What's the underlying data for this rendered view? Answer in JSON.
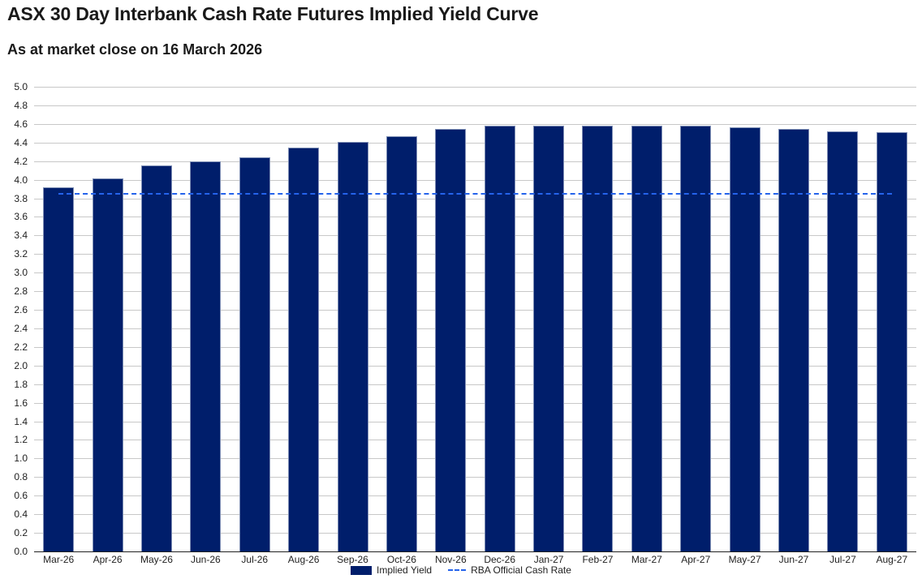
{
  "header": {
    "title": "ASX 30 Day Interbank Cash Rate Futures Implied Yield Curve",
    "subtitle": "As at market close on 16 March 2026"
  },
  "legend": {
    "bar_label": "Implied Yield",
    "line_label": "RBA Official Cash Rate"
  },
  "colors": {
    "bar": "#001e6b",
    "line": "#2563eb",
    "grid": "#c8c8c8"
  },
  "chart_data": {
    "type": "bar",
    "title": "ASX 30 Day Interbank Cash Rate Futures Implied Yield Curve",
    "subtitle": "As at market close on 16 March 2026",
    "xlabel": "",
    "ylabel": "",
    "ylim": [
      0,
      5.0
    ],
    "yticks": [
      "0.0",
      "0.2",
      "0.4",
      "0.6",
      "0.8",
      "1.0",
      "1.2",
      "1.4",
      "1.6",
      "1.8",
      "2.0",
      "2.2",
      "2.4",
      "2.6",
      "2.8",
      "3.0",
      "3.2",
      "3.4",
      "3.6",
      "3.8",
      "4.0",
      "4.2",
      "4.4",
      "4.6",
      "4.8",
      "5.0"
    ],
    "grid": true,
    "legend_position": "bottom",
    "categories": [
      "Mar-26",
      "Apr-26",
      "May-26",
      "Jun-26",
      "Jul-26",
      "Aug-26",
      "Sep-26",
      "Oct-26",
      "Nov-26",
      "Dec-26",
      "Jan-27",
      "Feb-27",
      "Mar-27",
      "Apr-27",
      "May-27",
      "Jun-27",
      "Jul-27",
      "Aug-27"
    ],
    "series": [
      {
        "name": "Implied Yield",
        "type": "bar",
        "values": [
          3.92,
          4.01,
          4.15,
          4.2,
          4.24,
          4.35,
          4.41,
          4.47,
          4.55,
          4.58,
          4.58,
          4.58,
          4.58,
          4.58,
          4.56,
          4.55,
          4.52,
          4.51
        ]
      },
      {
        "name": "RBA Official Cash Rate",
        "type": "line",
        "style": "dashed",
        "values": [
          3.85,
          3.85,
          3.85,
          3.85,
          3.85,
          3.85,
          3.85,
          3.85,
          3.85,
          3.85,
          3.85,
          3.85,
          3.85,
          3.85,
          3.85,
          3.85,
          3.85,
          3.85
        ]
      }
    ]
  }
}
